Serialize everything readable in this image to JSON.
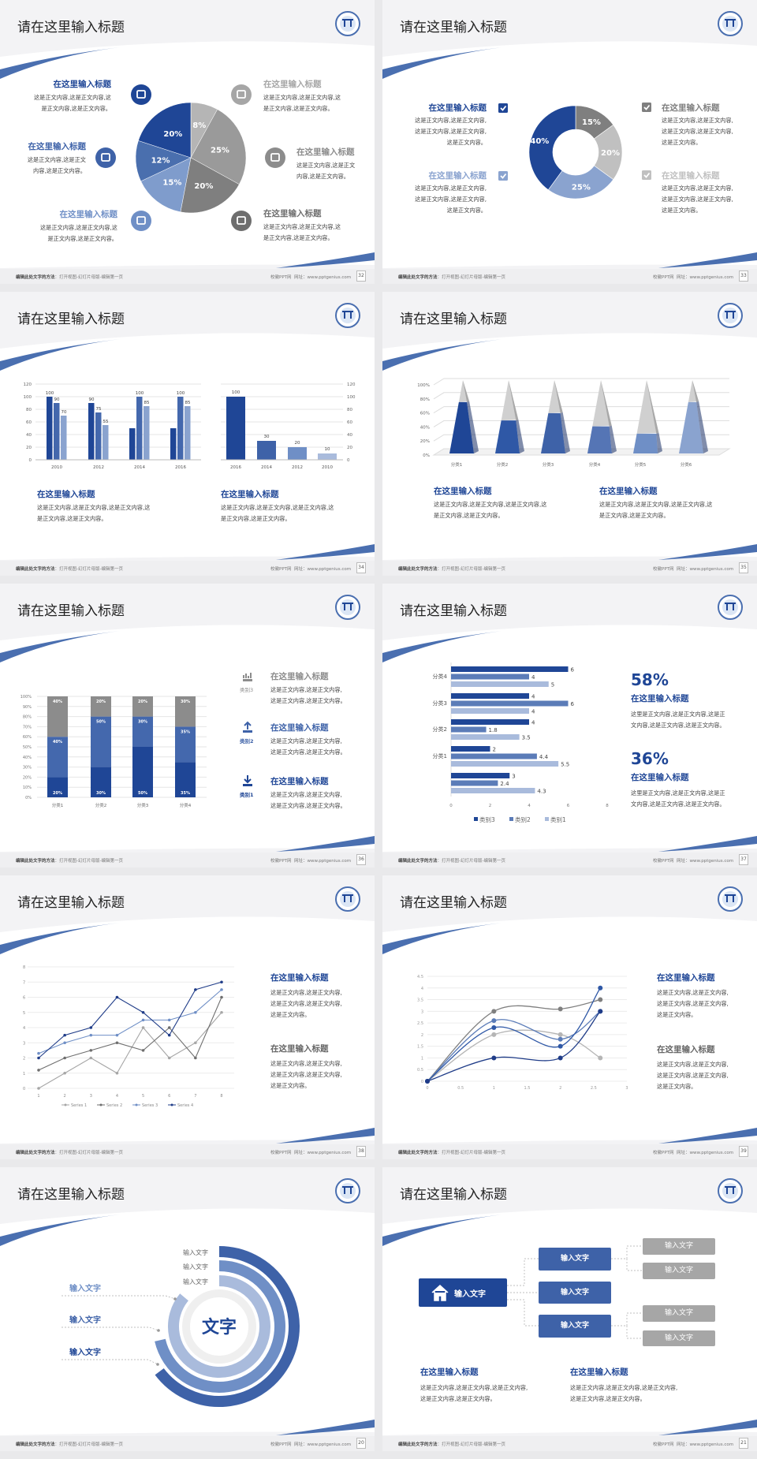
{
  "common": {
    "slide_title": "请在这里输入标题",
    "footer_hint_bold": "编辑此处文字的方法",
    "footer_hint": "：打开视图-幻灯片母版-编辑第一页",
    "footer_site": "校徽PPT网",
    "footer_url": "网址：www.pptgenius.com",
    "heading": "在这里输入标题",
    "colors": {
      "navy": "#1f4696",
      "blue": "#3e62a8",
      "mid": "#5b7cb8",
      "light": "#8aa3cf",
      "lighter": "#a9bbdc",
      "gray": "#8c8c8c",
      "lightgray": "#c0c0c0",
      "darkgray": "#6e6e6e"
    }
  },
  "pages": [
    "32",
    "33",
    "34",
    "35",
    "36",
    "37",
    "38",
    "39",
    "20",
    "21"
  ],
  "slide1": {
    "items": [
      {
        "title": "在这里输入标题",
        "lines": [
          "这是正文内容,这是正文内容,这",
          "是正文内容,这是正文内容。"
        ],
        "icon": "monitor-icon",
        "color": "#1f4696"
      },
      {
        "title": "在这里输入标题",
        "lines": [
          "这是正文内容,这是正文",
          "内容,这是正文内容。"
        ],
        "icon": "car-icon",
        "color": "#3e62a8"
      },
      {
        "title": "在这里输入标题",
        "lines": [
          "这是正文内容,这是正文内容,这",
          "是正文内容,这是正文内容。"
        ],
        "icon": "book-icon",
        "color": "#6f8fc6"
      },
      {
        "title": "在这里输入标题",
        "lines": [
          "这是正文内容,这是正文内容,这",
          "是正文内容,这是正文内容。"
        ],
        "icon": "phone-icon",
        "color": "#a6a6a6"
      },
      {
        "title": "在这里输入标题",
        "lines": [
          "这是正文内容,这是正文",
          "内容,这是正文内容。"
        ],
        "icon": "binoculars-icon",
        "color": "#8c8c8c"
      },
      {
        "title": "在这里输入标题",
        "lines": [
          "这是正文内容,这是正文内容,这",
          "是正文内容,这是正文内容。"
        ],
        "icon": "bicycle-icon",
        "color": "#6e6e6e"
      }
    ]
  },
  "slide2": {
    "items": [
      {
        "title": "在这里输入标题",
        "lines": [
          "这是正文内容,这是正文内容,",
          "这是正文内容,这是正文内容,",
          "这是正文内容。"
        ],
        "color": "#1f4696"
      },
      {
        "title": "在这里输入标题",
        "lines": [
          "这是正文内容,这是正文内容,",
          "这是正文内容,这是正文内容,",
          "这是正文内容。"
        ],
        "color": "#8aa3cf"
      },
      {
        "title": "在这里输入标题",
        "lines": [
          "这是正文内容,这是正文内容,",
          "这是正文内容,这是正文内容,",
          "这是正文内容。"
        ],
        "color": "#7f7f7f"
      },
      {
        "title": "在这里输入标题",
        "lines": [
          "这是正文内容,这是正文内容,",
          "这是正文内容,这是正文内容,",
          "这是正文内容。"
        ],
        "color": "#c0c0c0"
      }
    ]
  },
  "slide3": {
    "items": [
      {
        "title": "在这里输入标题",
        "lines": [
          "这是正文内容,这是正文内容,这是正文内容,这",
          "是正文内容,这是正文内容。"
        ]
      },
      {
        "title": "在这里输入标题",
        "lines": [
          "这是正文内容,这是正文内容,这是正文内容,这",
          "是正文内容,这是正文内容。"
        ]
      }
    ]
  },
  "slide4": {
    "items": [
      {
        "title": "在这里输入标题",
        "lines": [
          "这是正文内容,这是正文内容,这是正文内容,这",
          "是正文内容,这是正文内容。"
        ]
      },
      {
        "title": "在这里输入标题",
        "lines": [
          "这是正文内容,这是正文内容,这是正文内容,这",
          "是正文内容,这是正文内容。"
        ]
      }
    ]
  },
  "slide5": {
    "items": [
      {
        "label": "类别3",
        "title": "在这里输入标题",
        "lines": [
          "这是正文内容,这是正文内容,",
          "这是正文内容,这是正文内容。"
        ],
        "icon": "bar-chart-icon",
        "color": "#8c8c8c"
      },
      {
        "label": "类别2",
        "title": "在这里输入标题",
        "lines": [
          "这是正文内容,这是正文内容,",
          "这是正文内容,这是正文内容。"
        ],
        "icon": "upload-icon",
        "color": "#3e62a8"
      },
      {
        "label": "类别1",
        "title": "在这里输入标题",
        "lines": [
          "这是正文内容,这是正文内容,",
          "这是正文内容,这是正文内容。"
        ],
        "icon": "download-icon",
        "color": "#1f4696"
      }
    ]
  },
  "slide6": {
    "items": [
      {
        "stat": "58%",
        "title": "在这里输入标题",
        "lines": [
          "这里是正文内容,这是正文内容,这是正",
          "文内容,这是正文内容,这是正文内容。"
        ]
      },
      {
        "stat": "36%",
        "title": "在这里输入标题",
        "lines": [
          "这里是正文内容,这是正文内容,这是正",
          "文内容,这是正文内容,这是正文内容。"
        ]
      }
    ]
  },
  "slide7": {
    "items": [
      {
        "title": "在这里输入标题",
        "lines": [
          "这是正文内容,这是正文内容,",
          "这是正文内容,这是正文内容,",
          "这是正文内容。"
        ],
        "color": "#1f4696"
      },
      {
        "title": "在这里输入标题",
        "lines": [
          "这是正文内容,这是正文内容,",
          "这是正文内容,这是正文内容,",
          "这是正文内容。"
        ],
        "color": "#666666"
      }
    ]
  },
  "slide8": {
    "items": [
      {
        "title": "在这里输入标题",
        "lines": [
          "这是正文内容,这是正文内容,",
          "这是正文内容,这是正文内容,",
          "这是正文内容。"
        ],
        "color": "#1f4696"
      },
      {
        "title": "在这里输入标题",
        "lines": [
          "这是正文内容,这是正文内容,",
          "这是正文内容,这是正文内容,",
          "这是正文内容。"
        ],
        "color": "#666666"
      }
    ]
  },
  "slide9": {
    "center": "文字",
    "ring_labels": [
      "输入文字",
      "输入文字",
      "输入文字"
    ],
    "left_labels": [
      {
        "text": "输入文字",
        "color": "#6f8fc6"
      },
      {
        "text": "输入文字",
        "color": "#3e62a8"
      },
      {
        "text": "输入文字",
        "color": "#1f4696"
      }
    ],
    "ring_colors": [
      "#3e62a8",
      "#6f8fc6",
      "#a9bbdc"
    ]
  },
  "slide10": {
    "root": "输入文字",
    "mid": [
      "输入文字",
      "输入文字",
      "输入文字"
    ],
    "leaves": [
      "输入文字",
      "输入文字",
      "输入文字",
      "输入文字"
    ],
    "items": [
      {
        "title": "在这里输入标题",
        "lines": [
          "这是正文内容,这是正文内容,这是正文内容,",
          "这是正文内容,这是正文内容。"
        ]
      },
      {
        "title": "在这里输入标题",
        "lines": [
          "这是正文内容,这是正文内容,这是正文内容,",
          "这是正文内容,这是正文内容。"
        ]
      }
    ]
  },
  "chart_data": [
    {
      "type": "pie",
      "values": [
        8,
        25,
        20,
        15,
        12,
        20
      ],
      "labels": [
        "8%",
        "25%",
        "20%",
        "15%",
        "12%",
        "20%"
      ],
      "colors": [
        "#b5b5b5",
        "#9a9a9a",
        "#7f7f7f",
        "#7f9ccc",
        "#4a6fae",
        "#1f4696"
      ]
    },
    {
      "type": "pie",
      "donut": true,
      "values": [
        15,
        20,
        25,
        40
      ],
      "labels": [
        "15%",
        "20%",
        "25%",
        "40%"
      ],
      "colors": [
        "#7f7f7f",
        "#c0c0c0",
        "#8aa3cf",
        "#1f4696"
      ]
    },
    {
      "type": "bar",
      "categories": [
        "2010",
        "2012",
        "2014",
        "2016"
      ],
      "ylim": [
        0,
        120
      ],
      "yticks": [
        0,
        20,
        40,
        60,
        80,
        100,
        120
      ],
      "series": [
        {
          "values": [
            100,
            90,
            50,
            50
          ],
          "labels": [
            "100",
            "90",
            "",
            ""
          ],
          "color": "#1f4696"
        },
        {
          "values": [
            90,
            75,
            100,
            100
          ],
          "labels": [
            "90",
            "75",
            "100",
            "100"
          ],
          "color": "#4468ad"
        },
        {
          "values": [
            70,
            55,
            85,
            85
          ],
          "labels": [
            "70",
            "55",
            "85",
            "85"
          ],
          "color": "#8aa3cf"
        }
      ]
    },
    {
      "type": "bar",
      "categories": [
        "2016",
        "2014",
        "2012",
        "2010"
      ],
      "ylim": [
        0,
        120
      ],
      "yticks": [
        0,
        20,
        40,
        60,
        80,
        100,
        120
      ],
      "axis": "right",
      "values": [
        100,
        30,
        20,
        10
      ],
      "labels": [
        "100",
        "30",
        "20",
        "10"
      ],
      "colors": [
        "#1f4696",
        "#3e62a8",
        "#6f8fc6",
        "#a9bbdc"
      ]
    },
    {
      "type": "bar",
      "style": "3d-pyramid",
      "categories": [
        "分类1",
        "分类2",
        "分类3",
        "分类4",
        "分类5",
        "分类6"
      ],
      "values": [
        70,
        45,
        55,
        37,
        27,
        70
      ],
      "ylim": [
        0,
        100
      ],
      "yticks": [
        "0%",
        "20%",
        "40%",
        "60%",
        "80%",
        "100%"
      ],
      "colors": [
        "#1f4696",
        "#2f58a6",
        "#3e62a8",
        "#5575b5",
        "#6f8fc6",
        "#8aa3cf"
      ]
    },
    {
      "type": "bar",
      "stacked": true,
      "categories": [
        "分类1",
        "分类2",
        "分类3",
        "分类4"
      ],
      "ylim": [
        0,
        100
      ],
      "yticks": [
        "0%",
        "10%",
        "20%",
        "30%",
        "40%",
        "50%",
        "60%",
        "70%",
        "80%",
        "90%",
        "100%"
      ],
      "series": [
        {
          "values": [
            20,
            30,
            50,
            35
          ],
          "color": "#1f4696"
        },
        {
          "values": [
            40,
            50,
            30,
            35
          ],
          "color": "#4468ad"
        },
        {
          "values": [
            40,
            20,
            20,
            30
          ],
          "color": "#8c8c8c"
        }
      ]
    },
    {
      "type": "bar",
      "orientation": "horizontal",
      "categories": [
        "分类4",
        "分类3",
        "分类2",
        "分类1",
        ""
      ],
      "xlim": [
        0,
        8
      ],
      "xticks": [
        0,
        2,
        4,
        6,
        8
      ],
      "series": [
        {
          "name": "类别3",
          "values": [
            6,
            4,
            4,
            2,
            3
          ],
          "color": "#1f4696"
        },
        {
          "name": "类别2",
          "values": [
            4,
            6,
            1.8,
            4.4,
            2.4
          ],
          "color": "#5b7cb8"
        },
        {
          "name": "类别1",
          "values": [
            5,
            4,
            3.5,
            5.5,
            4.3
          ],
          "color": "#a9bbdc"
        }
      ],
      "legend": "bottom"
    },
    {
      "type": "line",
      "x": [
        1,
        2,
        3,
        4,
        5,
        6,
        7,
        8
      ],
      "ylim": [
        0,
        8
      ],
      "grid": true,
      "series": [
        {
          "name": "Series 1",
          "values": [
            0,
            1,
            2,
            1,
            4,
            2,
            3,
            5
          ],
          "color": "#a6a6a6"
        },
        {
          "name": "Series 2",
          "values": [
            1.2,
            2,
            2.5,
            3,
            2.5,
            4,
            2,
            6
          ],
          "color": "#6e6e6e"
        },
        {
          "name": "Series 3",
          "values": [
            2.3,
            3,
            3.5,
            3.5,
            4.5,
            4.5,
            5,
            6.5
          ],
          "color": "#6f8fc6"
        },
        {
          "name": "Series 4",
          "values": [
            2,
            3.5,
            4,
            6,
            5,
            3.5,
            6.5,
            7
          ],
          "color": "#1f3c88"
        }
      ],
      "legend": "bottom"
    },
    {
      "type": "scatter",
      "smooth": true,
      "xlim": [
        0,
        3
      ],
      "ylim": [
        0,
        4.5
      ],
      "xticks": [
        0,
        0.5,
        1,
        1.5,
        2,
        2.5,
        3
      ],
      "yticks": [
        0,
        0.5,
        1,
        1.5,
        2,
        2.5,
        3,
        3.5,
        4,
        4.5
      ],
      "x": [
        0,
        1,
        2,
        2.6
      ],
      "series": [
        {
          "values": [
            0,
            3,
            3.1,
            3.5
          ],
          "color": "#7f7f7f"
        },
        {
          "values": [
            0,
            2,
            2,
            1
          ],
          "color": "#b5b5b5"
        },
        {
          "values": [
            0,
            2.6,
            1.8,
            3
          ],
          "color": "#5b7cb8"
        },
        {
          "values": [
            0,
            2.3,
            1.5,
            4
          ],
          "color": "#2f58a6"
        },
        {
          "values": [
            0,
            1,
            1,
            3
          ],
          "color": "#1f3c88"
        }
      ]
    }
  ]
}
